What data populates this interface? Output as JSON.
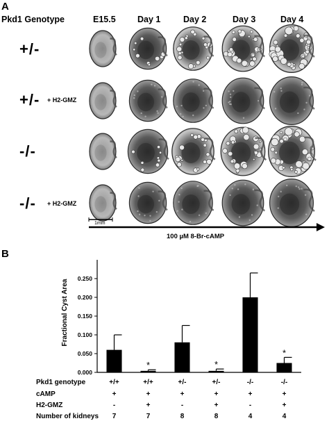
{
  "panel_a": {
    "letter": "A",
    "row_header": "Pkd1 Genotype",
    "col_headers": [
      "E15.5",
      "Day 1",
      "Day 2",
      "Day 3",
      "Day 4"
    ],
    "rows": [
      {
        "genotype": "+/-",
        "treatment": ""
      },
      {
        "genotype": "+/-",
        "treatment": "+ H2-GMZ"
      },
      {
        "genotype": "-/-",
        "treatment": ""
      },
      {
        "genotype": "-/-",
        "treatment": "+ H2-GMZ"
      }
    ],
    "scale_bar_label": "1mm",
    "arrow_label": "100 µM 8-Br-cAMP"
  },
  "panel_b": {
    "letter": "B",
    "row_labels": {
      "genotype": "Pkd1 genotype",
      "camp": "cAMP",
      "h2gmz": "H2-GMZ",
      "kidneys": "Number of kidneys"
    },
    "columns": [
      {
        "genotype": "+/+",
        "camp": "+",
        "h2gmz": "-",
        "kidneys": "7"
      },
      {
        "genotype": "+/+",
        "camp": "+",
        "h2gmz": "+",
        "kidneys": "7"
      },
      {
        "genotype": "+/-",
        "camp": "+",
        "h2gmz": "-",
        "kidneys": "8"
      },
      {
        "genotype": "+/-",
        "camp": "+",
        "h2gmz": "+",
        "kidneys": "8"
      },
      {
        "genotype": "-/-",
        "camp": "+",
        "h2gmz": "-",
        "kidneys": "4"
      },
      {
        "genotype": "-/-",
        "camp": "+",
        "h2gmz": "+",
        "kidneys": "4"
      }
    ]
  },
  "chart_data": {
    "type": "bar",
    "ylabel": "Fractional Cyst Area",
    "ylim": [
      0,
      0.3
    ],
    "yticks": [
      "0.000",
      "0.050",
      "0.100",
      "0.150",
      "0.200",
      "0.250"
    ],
    "values": [
      0.06,
      0.004,
      0.08,
      0.004,
      0.2,
      0.025
    ],
    "errors": [
      0.04,
      0.003,
      0.045,
      0.005,
      0.065,
      0.015
    ],
    "significance": [
      "",
      "*",
      "",
      "*",
      "",
      "*"
    ],
    "bar_color": "#000000",
    "grid": false
  },
  "colors": {
    "tissue_dark": "#3a3a3a",
    "tissue_mid": "#8a8a8a",
    "tissue_light": "#d4d4d4",
    "e155_fill": "#b8b8b8"
  }
}
